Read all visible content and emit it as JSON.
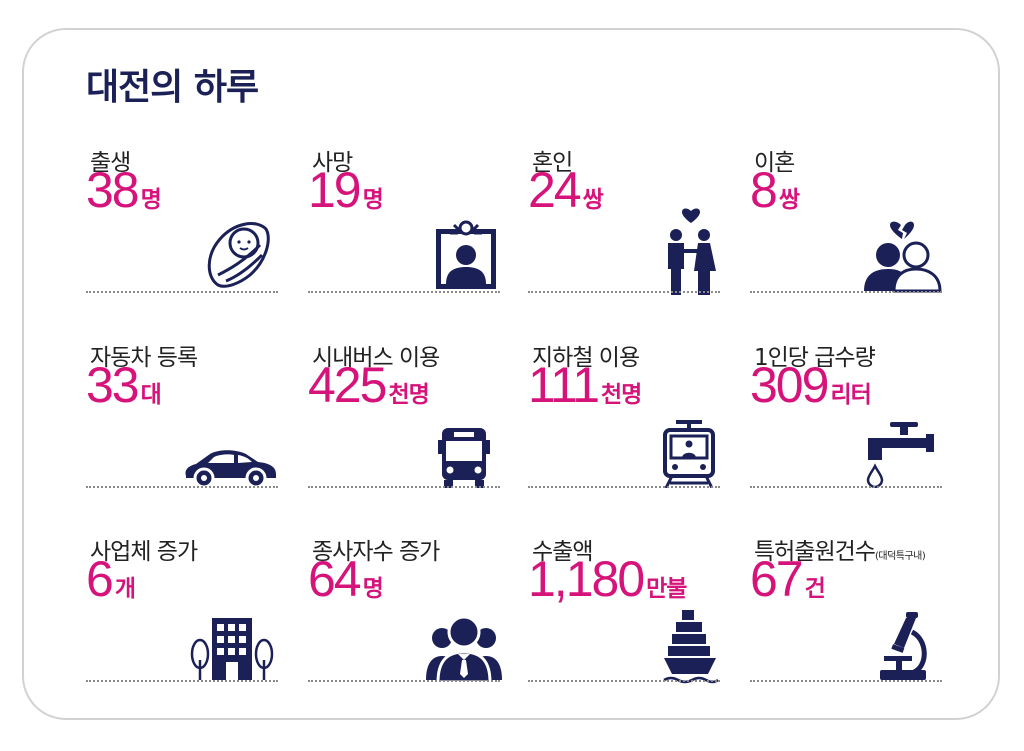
{
  "title": "대전의 하루",
  "colors": {
    "title": "#1b2056",
    "value": "#d6137a",
    "icon": "#1b2056"
  },
  "items": [
    {
      "label": "출생",
      "value": "38",
      "unit": "명",
      "icon": "baby-icon"
    },
    {
      "label": "사망",
      "value": "19",
      "unit": "명",
      "icon": "memorial-portrait-icon"
    },
    {
      "label": "혼인",
      "value": "24",
      "unit": "쌍",
      "icon": "couple-heart-icon"
    },
    {
      "label": "이혼",
      "value": "8",
      "unit": "쌍",
      "icon": "broken-heart-couple-icon"
    },
    {
      "label": "자동차 등록",
      "value": "33",
      "unit": "대",
      "icon": "car-icon"
    },
    {
      "label": "시내버스 이용",
      "value": "425",
      "unit": "천명",
      "icon": "bus-icon"
    },
    {
      "label": "지하철 이용",
      "value": "111",
      "unit": "천명",
      "icon": "subway-train-icon"
    },
    {
      "label": "1인당 급수량",
      "value": "309",
      "unit": "리터",
      "icon": "water-tap-icon"
    },
    {
      "label": "사업체 증가",
      "value": "6",
      "unit": "개",
      "icon": "building-icon"
    },
    {
      "label": "종사자수 증가",
      "value": "64",
      "unit": "명",
      "icon": "workers-group-icon"
    },
    {
      "label": "수출액",
      "value": "1,180",
      "unit": "만불",
      "icon": "cargo-ship-icon"
    },
    {
      "label": "특허출원건수",
      "label_sub": "(대덕특구내)",
      "value": "67",
      "unit": "건",
      "icon": "microscope-icon"
    }
  ]
}
